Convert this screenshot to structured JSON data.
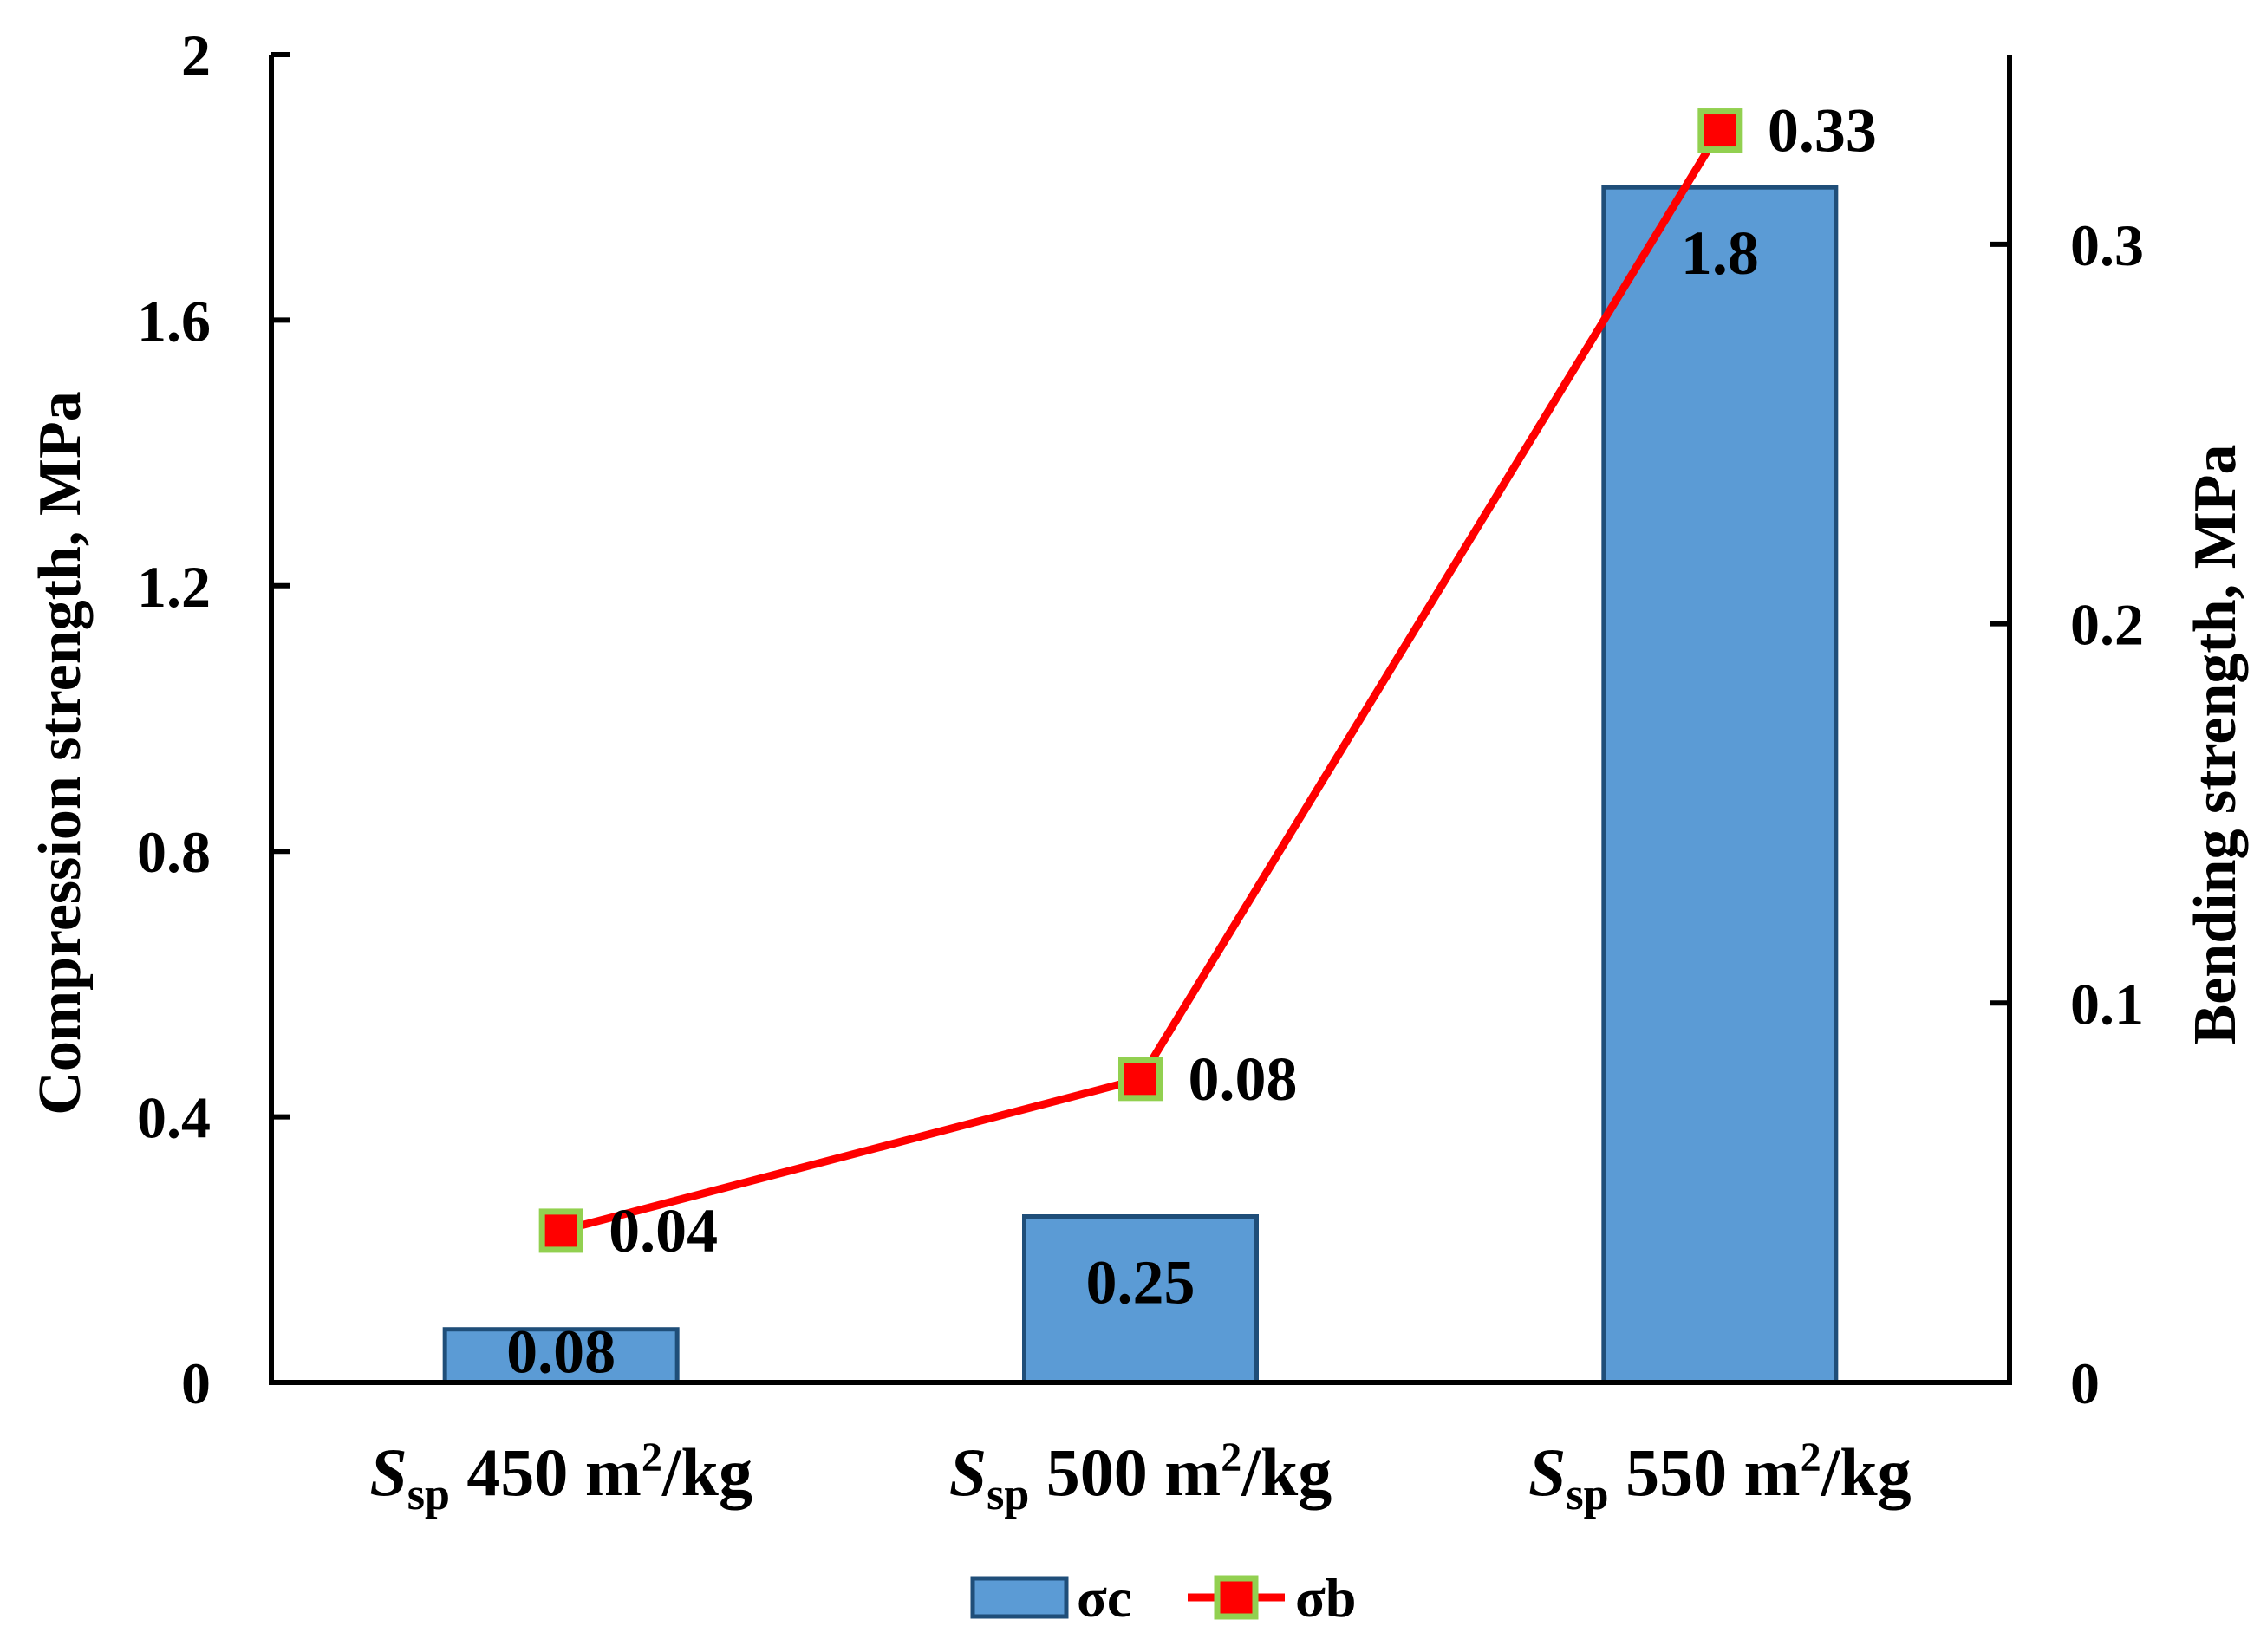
{
  "chart_data": {
    "type": "bar",
    "categories": [
      {
        "main": "S",
        "sub": "sp",
        "value": "450 m",
        "sup": "2",
        "unit": "/kg"
      },
      {
        "main": "S",
        "sub": "sp",
        "value": "500 m",
        "sup": "2",
        "unit": "/kg"
      },
      {
        "main": "S",
        "sub": "sp",
        "value": "550 m",
        "sup": "2",
        "unit": "/kg"
      }
    ],
    "series": [
      {
        "name": "σc",
        "type": "bar",
        "axis": "left",
        "values": [
          0.08,
          0.25,
          1.8
        ],
        "labels": [
          "0.08",
          "0.25",
          "1.8"
        ],
        "color": "#5b9bd5",
        "edge_color": "#1f4e79"
      },
      {
        "name": "σb",
        "type": "line",
        "axis": "right",
        "values": [
          0.04,
          0.08,
          0.33
        ],
        "labels": [
          "0.04",
          "0.08",
          "0.33"
        ],
        "color": "#ff0000",
        "marker_edge": "#92d050"
      }
    ],
    "ylabel_left": "Compression strength, MPa",
    "ylabel_right": "Bending strength, MPa",
    "ylim_left": [
      0,
      2
    ],
    "yticks_left": [
      "0",
      "0.4",
      "0.8",
      "1.2",
      "1.6",
      "2"
    ],
    "ylim_right": [
      0,
      0.35
    ],
    "yticks_right": [
      "0",
      "0.1",
      "0.2",
      "0.3"
    ],
    "grid": false,
    "legend": "bottom-center"
  }
}
